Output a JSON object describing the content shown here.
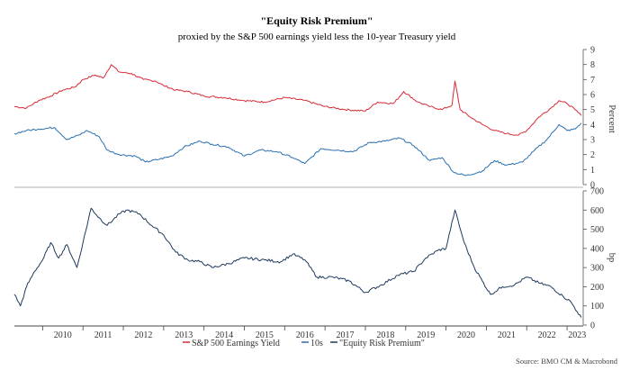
{
  "chart_data": [
    {
      "type": "line",
      "title": "\"Equity Risk Premium\"",
      "subtitle": "proxied by the S&P 500 earnings yield less the 10-year Treasury yield",
      "ylabel": "Percent",
      "ylim": [
        0,
        9
      ],
      "yticks": [
        0,
        1,
        2,
        3,
        4,
        5,
        6,
        7,
        8,
        9
      ],
      "xlim": [
        2009.3,
        2023.4
      ],
      "series": [
        {
          "name": "S&P 500 Earnings Yield",
          "color": "#d62a35",
          "points": [
            [
              2009.3,
              5.2
            ],
            [
              2009.6,
              5.1
            ],
            [
              2009.9,
              5.6
            ],
            [
              2010.2,
              5.9
            ],
            [
              2010.5,
              6.3
            ],
            [
              2010.8,
              6.5
            ],
            [
              2011.0,
              7.0
            ],
            [
              2011.3,
              7.3
            ],
            [
              2011.5,
              7.1
            ],
            [
              2011.7,
              8.0
            ],
            [
              2011.9,
              7.5
            ],
            [
              2012.2,
              7.4
            ],
            [
              2012.5,
              7.0
            ],
            [
              2012.8,
              6.9
            ],
            [
              2013.0,
              6.6
            ],
            [
              2013.3,
              6.3
            ],
            [
              2013.6,
              6.2
            ],
            [
              2014.0,
              5.9
            ],
            [
              2014.5,
              5.8
            ],
            [
              2015.0,
              5.6
            ],
            [
              2015.5,
              5.5
            ],
            [
              2016.0,
              5.8
            ],
            [
              2016.5,
              5.6
            ],
            [
              2017.0,
              5.2
            ],
            [
              2017.5,
              5.0
            ],
            [
              2018.0,
              4.9
            ],
            [
              2018.3,
              5.5
            ],
            [
              2018.7,
              5.4
            ],
            [
              2018.95,
              6.2
            ],
            [
              2019.3,
              5.5
            ],
            [
              2019.6,
              5.2
            ],
            [
              2019.9,
              5.0
            ],
            [
              2020.15,
              5.3
            ],
            [
              2020.22,
              6.9
            ],
            [
              2020.35,
              5.0
            ],
            [
              2020.6,
              4.5
            ],
            [
              2020.9,
              4.0
            ],
            [
              2021.2,
              3.6
            ],
            [
              2021.5,
              3.4
            ],
            [
              2021.8,
              3.3
            ],
            [
              2022.0,
              3.6
            ],
            [
              2022.3,
              4.5
            ],
            [
              2022.6,
              5.1
            ],
            [
              2022.8,
              5.6
            ],
            [
              2023.0,
              5.4
            ],
            [
              2023.2,
              5.0
            ],
            [
              2023.35,
              4.6
            ]
          ]
        },
        {
          "name": "10s",
          "color": "#2a6fb0",
          "points": [
            [
              2009.3,
              3.4
            ],
            [
              2009.6,
              3.6
            ],
            [
              2009.9,
              3.7
            ],
            [
              2010.3,
              3.8
            ],
            [
              2010.6,
              3.0
            ],
            [
              2010.9,
              3.3
            ],
            [
              2011.1,
              3.6
            ],
            [
              2011.4,
              3.2
            ],
            [
              2011.6,
              2.3
            ],
            [
              2011.9,
              2.0
            ],
            [
              2012.3,
              1.9
            ],
            [
              2012.55,
              1.5
            ],
            [
              2012.9,
              1.7
            ],
            [
              2013.2,
              1.9
            ],
            [
              2013.5,
              2.5
            ],
            [
              2013.9,
              2.9
            ],
            [
              2014.2,
              2.7
            ],
            [
              2014.6,
              2.5
            ],
            [
              2015.0,
              1.9
            ],
            [
              2015.4,
              2.3
            ],
            [
              2015.8,
              2.2
            ],
            [
              2016.2,
              1.8
            ],
            [
              2016.5,
              1.4
            ],
            [
              2016.9,
              2.4
            ],
            [
              2017.3,
              2.3
            ],
            [
              2017.7,
              2.2
            ],
            [
              2018.1,
              2.8
            ],
            [
              2018.5,
              2.9
            ],
            [
              2018.85,
              3.1
            ],
            [
              2019.2,
              2.6
            ],
            [
              2019.6,
              1.6
            ],
            [
              2019.9,
              1.8
            ],
            [
              2020.2,
              0.8
            ],
            [
              2020.5,
              0.6
            ],
            [
              2020.9,
              0.9
            ],
            [
              2021.2,
              1.6
            ],
            [
              2021.5,
              1.3
            ],
            [
              2021.9,
              1.5
            ],
            [
              2022.2,
              2.3
            ],
            [
              2022.5,
              3.0
            ],
            [
              2022.8,
              4.0
            ],
            [
              2023.0,
              3.6
            ],
            [
              2023.2,
              3.7
            ],
            [
              2023.35,
              4.1
            ]
          ]
        }
      ]
    },
    {
      "type": "line",
      "ylabel": "bp",
      "ylim": [
        0,
        700
      ],
      "yticks": [
        0,
        100,
        200,
        300,
        400,
        500,
        600,
        700
      ],
      "xlim": [
        2009.3,
        2023.4
      ],
      "series": [
        {
          "name": "\"Equity Risk Premium\"",
          "color": "#1f3a5f",
          "points": [
            [
              2009.3,
              160
            ],
            [
              2009.45,
              100
            ],
            [
              2009.6,
              200
            ],
            [
              2009.8,
              280
            ],
            [
              2010.0,
              340
            ],
            [
              2010.2,
              430
            ],
            [
              2010.4,
              350
            ],
            [
              2010.6,
              420
            ],
            [
              2010.85,
              300
            ],
            [
              2011.0,
              430
            ],
            [
              2011.2,
              610
            ],
            [
              2011.4,
              560
            ],
            [
              2011.6,
              520
            ],
            [
              2011.9,
              580
            ],
            [
              2012.1,
              600
            ],
            [
              2012.4,
              580
            ],
            [
              2012.7,
              520
            ],
            [
              2013.0,
              470
            ],
            [
              2013.3,
              380
            ],
            [
              2013.6,
              340
            ],
            [
              2013.9,
              330
            ],
            [
              2014.2,
              300
            ],
            [
              2014.6,
              320
            ],
            [
              2015.0,
              350
            ],
            [
              2015.5,
              340
            ],
            [
              2015.9,
              330
            ],
            [
              2016.2,
              370
            ],
            [
              2016.5,
              340
            ],
            [
              2016.8,
              250
            ],
            [
              2017.2,
              250
            ],
            [
              2017.6,
              230
            ],
            [
              2018.0,
              170
            ],
            [
              2018.4,
              210
            ],
            [
              2018.8,
              260
            ],
            [
              2019.2,
              280
            ],
            [
              2019.5,
              350
            ],
            [
              2019.8,
              390
            ],
            [
              2020.0,
              400
            ],
            [
              2020.22,
              600
            ],
            [
              2020.45,
              430
            ],
            [
              2020.7,
              300
            ],
            [
              2020.9,
              230
            ],
            [
              2021.1,
              160
            ],
            [
              2021.4,
              200
            ],
            [
              2021.7,
              210
            ],
            [
              2022.0,
              250
            ],
            [
              2022.3,
              220
            ],
            [
              2022.6,
              200
            ],
            [
              2022.9,
              150
            ],
            [
              2023.1,
              120
            ],
            [
              2023.25,
              70
            ],
            [
              2023.35,
              40
            ]
          ]
        }
      ]
    }
  ],
  "x_axis": {
    "tick_labels": [
      "2010",
      "2011",
      "2012",
      "2013",
      "2014",
      "2015",
      "2016",
      "2017",
      "2018",
      "2019",
      "2020",
      "2021",
      "2022",
      "2023"
    ]
  },
  "legend": {
    "items": [
      "S&P 500 Earnings Yield",
      "10s",
      "\"Equity Risk Premium\""
    ]
  },
  "source": "Source: BMO CM & Macrobond"
}
